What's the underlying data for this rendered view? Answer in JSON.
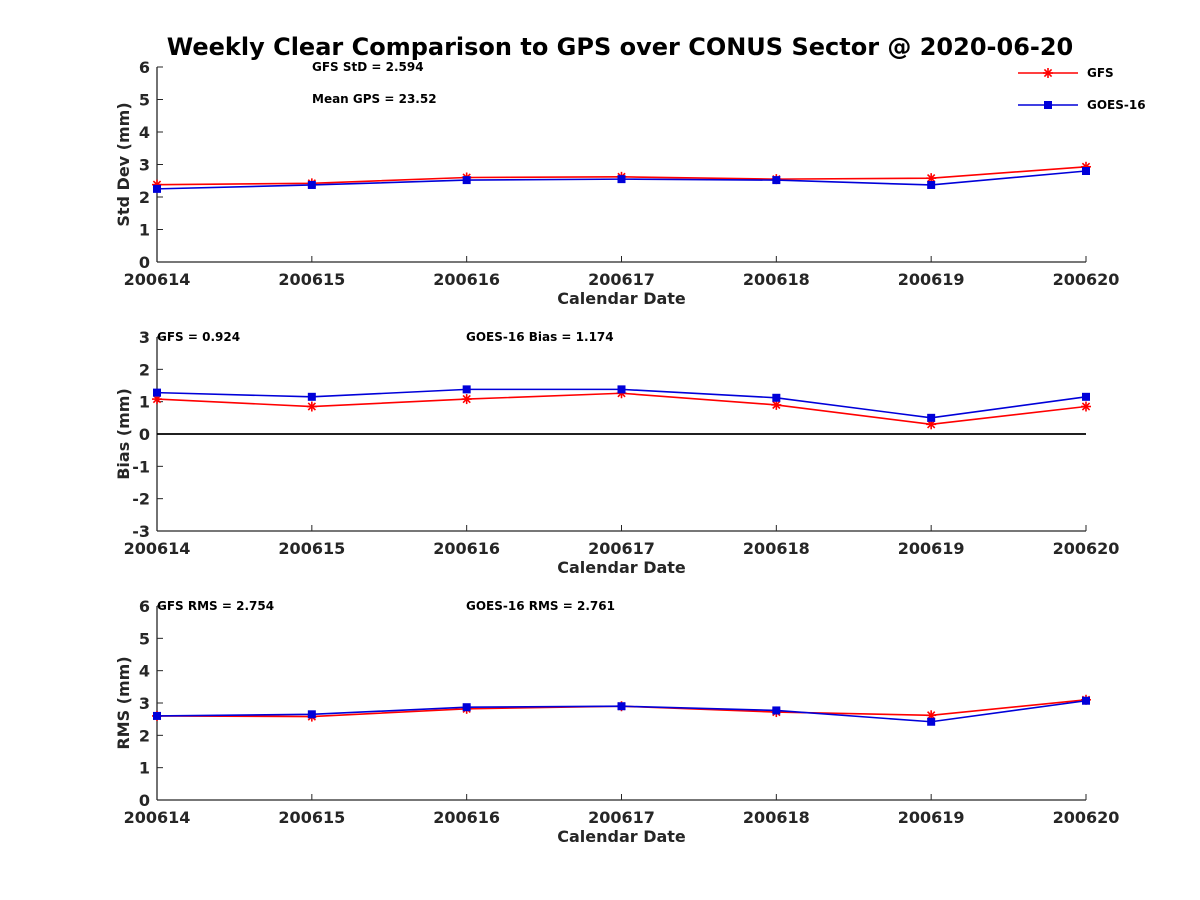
{
  "title": "Weekly Clear Comparison to GPS over CONUS Sector @ 2020-06-20",
  "colors": {
    "GFS": "#ff0000",
    "GOES-16": "#0000d9",
    "axis": "#262626",
    "zero_line": "#000000"
  },
  "legend": {
    "placement": "top-right",
    "entries": [
      "GFS",
      "GOES-16"
    ]
  },
  "chart_data": [
    {
      "type": "line",
      "categories": [
        "200614",
        "200615",
        "200616",
        "200617",
        "200618",
        "200619",
        "200620"
      ],
      "xlabel": "Calendar Date",
      "ylabel": "Std Dev (mm)",
      "ylim": [
        0,
        6
      ],
      "yticks": [
        "0",
        "1",
        "2",
        "3",
        "4",
        "5",
        "6"
      ],
      "grid": false,
      "annotations": [
        "GFS StD = 2.594",
        "Mean GPS = 23.52"
      ],
      "series": [
        {
          "name": "GFS",
          "marker": "asterisk",
          "values": [
            2.38,
            2.42,
            2.6,
            2.62,
            2.55,
            2.58,
            2.93
          ]
        },
        {
          "name": "GOES-16",
          "marker": "square",
          "values": [
            2.25,
            2.37,
            2.52,
            2.55,
            2.52,
            2.37,
            2.8
          ]
        }
      ]
    },
    {
      "type": "line",
      "categories": [
        "200614",
        "200615",
        "200616",
        "200617",
        "200618",
        "200619",
        "200620"
      ],
      "xlabel": "Calendar Date",
      "ylabel": "Bias (mm)",
      "ylim": [
        -3,
        3
      ],
      "yticks": [
        "-3",
        "-2",
        "-1",
        "0",
        "1",
        "2",
        "3"
      ],
      "grid": false,
      "reference_line": 0,
      "annotations": [
        "GFS = 0.924",
        "GOES-16 Bias  = 1.174"
      ],
      "series": [
        {
          "name": "GFS",
          "marker": "asterisk",
          "values": [
            1.08,
            0.85,
            1.08,
            1.26,
            0.9,
            0.3,
            0.85
          ]
        },
        {
          "name": "GOES-16",
          "marker": "square",
          "values": [
            1.28,
            1.15,
            1.38,
            1.38,
            1.12,
            0.5,
            1.15
          ]
        }
      ]
    },
    {
      "type": "line",
      "categories": [
        "200614",
        "200615",
        "200616",
        "200617",
        "200618",
        "200619",
        "200620"
      ],
      "xlabel": "Calendar Date",
      "ylabel": "RMS (mm)",
      "ylim": [
        0,
        6
      ],
      "yticks": [
        "0",
        "1",
        "2",
        "3",
        "4",
        "5",
        "6"
      ],
      "grid": false,
      "annotations": [
        "GFS RMS = 2.754",
        "GOES-16 RMS = 2.761"
      ],
      "series": [
        {
          "name": "GFS",
          "marker": "asterisk",
          "values": [
            2.6,
            2.58,
            2.82,
            2.9,
            2.72,
            2.62,
            3.1
          ]
        },
        {
          "name": "GOES-16",
          "marker": "square",
          "values": [
            2.6,
            2.65,
            2.87,
            2.9,
            2.77,
            2.42,
            3.07
          ]
        }
      ]
    }
  ]
}
